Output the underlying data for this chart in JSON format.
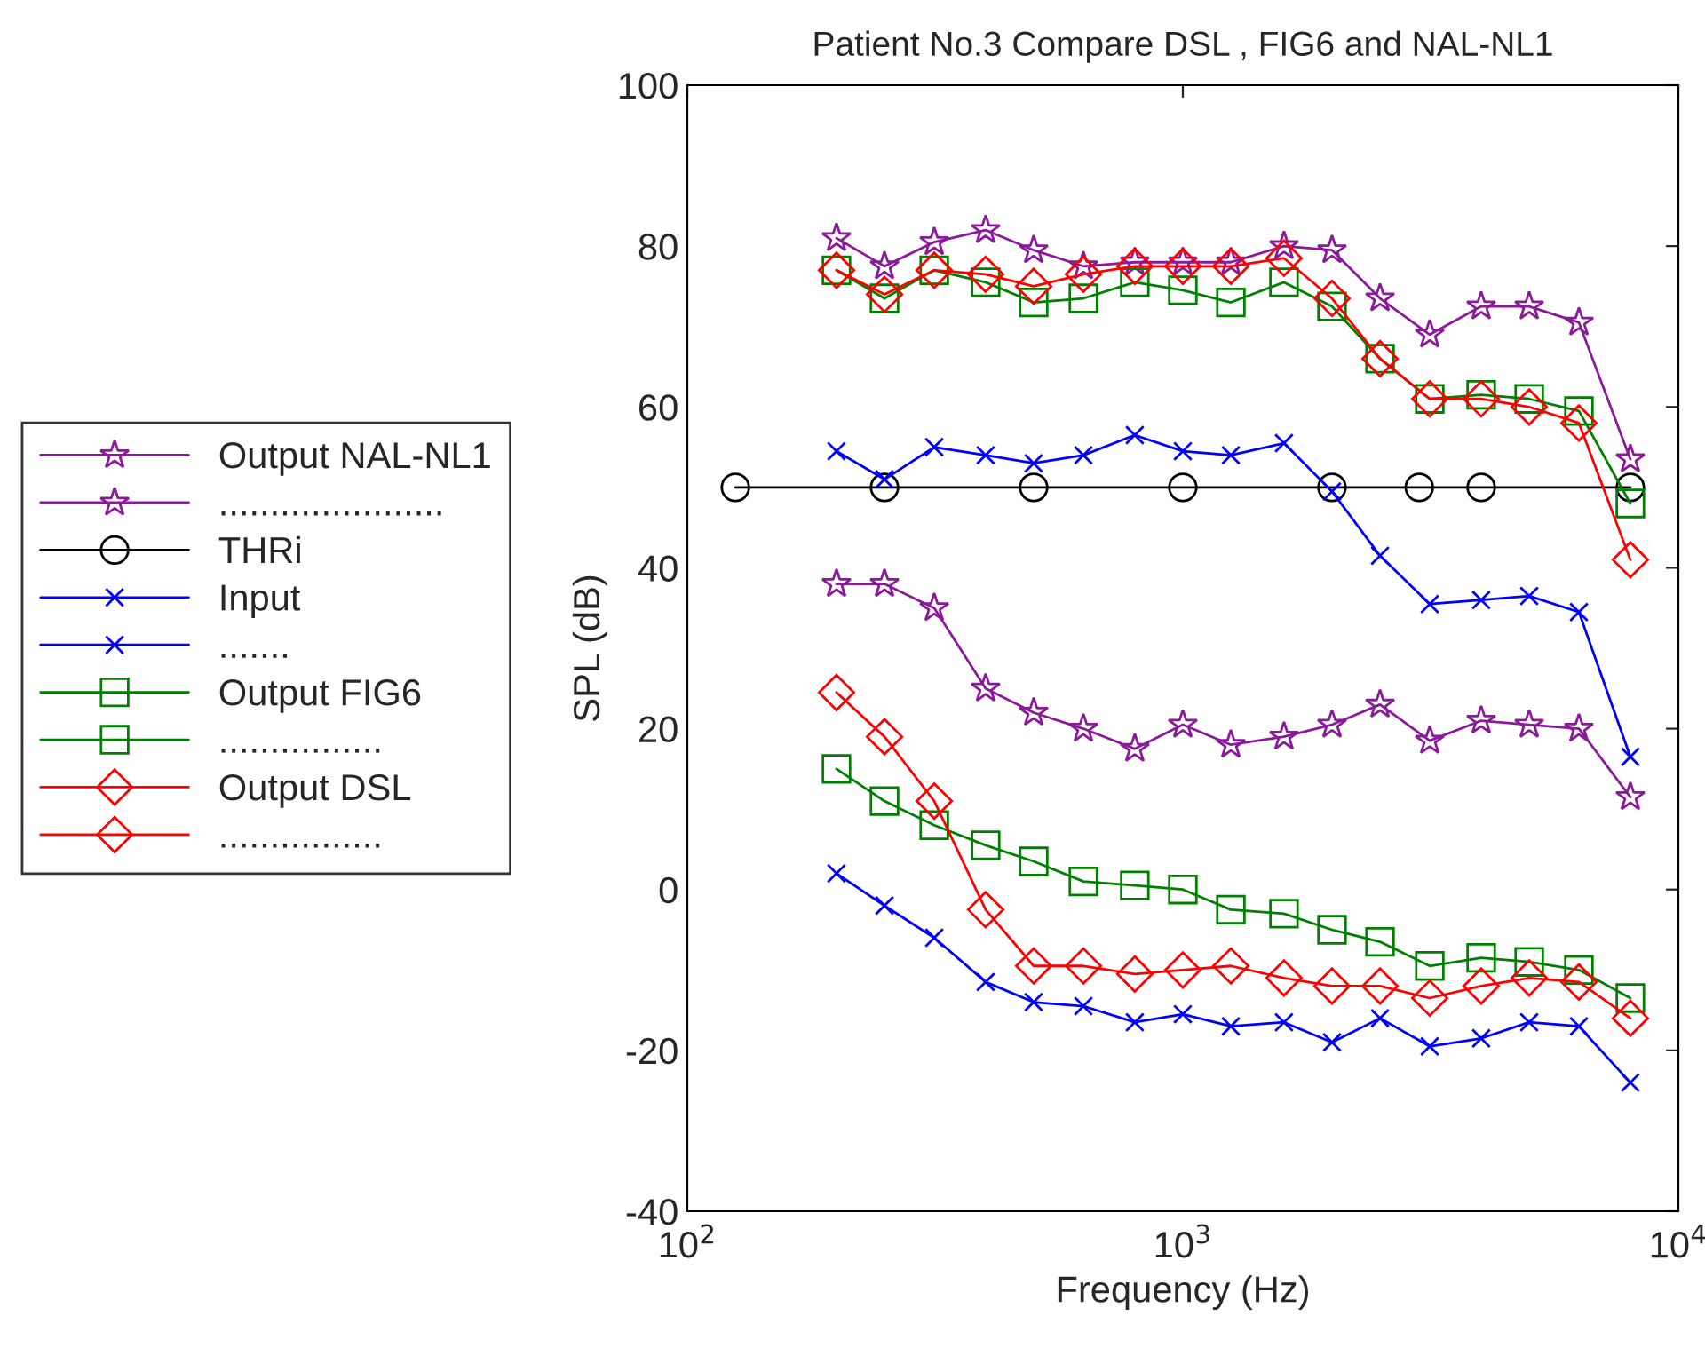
{
  "chart_data": {
    "type": "line",
    "title": "Patient No.3 Compare DSL , FIG6 and NAL-NL1",
    "xlabel": "Frequency (Hz)",
    "ylabel": "SPL (dB)",
    "x": [
      200,
      250,
      315,
      400,
      500,
      630,
      800,
      1000,
      1250,
      1600,
      2000,
      2500,
      3150,
      4000,
      5000,
      6300,
      8000
    ],
    "series": [
      {
        "name": "Output NAL-NL1",
        "color": "#8b1a9b",
        "marker": "star",
        "values": [
          81,
          77.5,
          80.5,
          82,
          79.5,
          77.5,
          78,
          78,
          78,
          80,
          79.5,
          73.5,
          69,
          72.5,
          72.5,
          70.5,
          53.5
        ]
      },
      {
        "name": "......................",
        "color": "#8b1a9b",
        "marker": "star",
        "values": [
          38,
          38,
          35,
          25,
          22,
          20,
          17.5,
          20.5,
          18,
          19,
          20.5,
          23,
          18.5,
          21,
          20.5,
          20,
          11.5
        ]
      },
      {
        "name": "THRi",
        "color": "#000000",
        "marker": "circle",
        "x": [
          125,
          250,
          500,
          1000,
          2000,
          3000,
          4000,
          8000
        ],
        "values": [
          50,
          50,
          50,
          50,
          50,
          50,
          50,
          50
        ]
      },
      {
        "name": "Input",
        "color": "#0000ff",
        "marker": "cross",
        "values": [
          54.5,
          51,
          55,
          54,
          53,
          54,
          56.5,
          54.5,
          54,
          55.5,
          49.5,
          41.5,
          35.5,
          36,
          36.5,
          34.5,
          16.5
        ]
      },
      {
        "name": ".......",
        "color": "#0000ff",
        "marker": "cross",
        "values": [
          2,
          -2,
          -6,
          -11.5,
          -14,
          -14.5,
          -16.5,
          -15.5,
          -17,
          -16.5,
          -19,
          -16,
          -19.5,
          -18.5,
          -16.5,
          -17,
          -24
        ]
      },
      {
        "name": "Output FIG6",
        "color": "#008000",
        "marker": "square",
        "values": [
          77,
          73.5,
          77,
          75.5,
          73,
          73.5,
          75.5,
          74.5,
          73,
          75.5,
          72.5,
          66,
          61,
          61.5,
          61,
          59.5,
          48
        ]
      },
      {
        "name": "................",
        "color": "#008000",
        "marker": "square",
        "values": [
          15,
          11,
          8,
          5.5,
          3.5,
          1,
          0.5,
          0,
          -2.5,
          -3,
          -5,
          -6.5,
          -9.5,
          -8.5,
          -9,
          -10,
          -13.5
        ]
      },
      {
        "name": "Output DSL",
        "color": "#ff0000",
        "marker": "diamond",
        "values": [
          77,
          74,
          77,
          76.5,
          75,
          76.5,
          77.5,
          77.5,
          77.5,
          78.5,
          73.5,
          66,
          61,
          61,
          60,
          58,
          41
        ]
      },
      {
        "name": "................",
        "color": "#ff0000",
        "marker": "diamond",
        "values": [
          24.5,
          19,
          11,
          -2.5,
          -9.5,
          -9.5,
          -10.5,
          -10,
          -9.5,
          -11,
          -12,
          -12,
          -13.5,
          -12,
          -11,
          -11.5,
          -16
        ]
      }
    ],
    "log": "x",
    "xlim": [
      100,
      10000
    ],
    "xticks": [
      {
        "value": 100,
        "label": "10$^{2}$"
      },
      {
        "value": 1000,
        "label": "10$^{3}$"
      },
      {
        "value": 10000,
        "label": "10$^{4}$"
      }
    ],
    "ylim": [
      -40,
      100
    ],
    "yticks": [
      -40,
      -20,
      0,
      20,
      40,
      60,
      80,
      100
    ],
    "grid": false,
    "legend": "left",
    "line_style": "solid"
  }
}
